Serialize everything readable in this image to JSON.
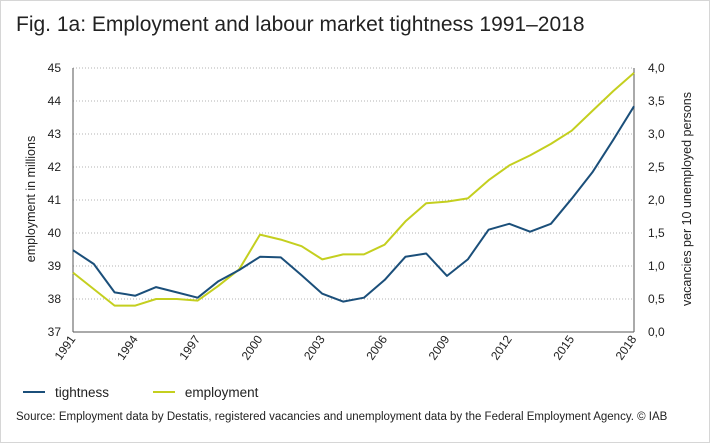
{
  "figure": {
    "title": "Fig. 1a: Employment and labour market tightness 1991–2018",
    "source": "Source: Employment data by Destatis, registered vacancies and unemployment data by the Federal Employment Agency. © IAB"
  },
  "chart_data": {
    "type": "line",
    "title": "Fig. 1a: Employment and labour market tightness 1991–2018",
    "xlabel": "",
    "ylabel": "employment in millions",
    "y2label": "vacancies per 10 unemployed persons",
    "x": [
      1991,
      1992,
      1993,
      1994,
      1995,
      1996,
      1997,
      1998,
      1999,
      2000,
      2001,
      2002,
      2003,
      2004,
      2005,
      2006,
      2007,
      2008,
      2009,
      2010,
      2011,
      2012,
      2013,
      2014,
      2015,
      2016,
      2017,
      2018
    ],
    "x_ticks": [
      "1991",
      "1994",
      "1997",
      "2000",
      "2003",
      "2006",
      "2009",
      "2012",
      "2015",
      "2018"
    ],
    "ylim": [
      37,
      45
    ],
    "y_ticks": [
      "37",
      "38",
      "39",
      "40",
      "41",
      "42",
      "43",
      "44",
      "45"
    ],
    "y2lim": [
      0,
      4
    ],
    "y2_ticks": [
      "0,0",
      "0,5",
      "1,0",
      "1,5",
      "2,0",
      "2,5",
      "3,0",
      "3,5",
      "4,0"
    ],
    "grid": "horizontal dotted",
    "legend_position": "bottom-left",
    "series": [
      {
        "name": "tightness",
        "axis": "right",
        "color": "#1b4f7a",
        "values": [
          1.24,
          1.03,
          0.6,
          0.55,
          0.68,
          0.6,
          0.52,
          0.77,
          0.94,
          1.14,
          1.13,
          0.86,
          0.58,
          0.46,
          0.52,
          0.79,
          1.14,
          1.19,
          0.85,
          1.1,
          1.55,
          1.64,
          1.52,
          1.64,
          2.02,
          2.42,
          2.91,
          3.42
        ]
      },
      {
        "name": "employment",
        "axis": "left",
        "color": "#c4cf1f",
        "values": [
          38.8,
          38.3,
          37.8,
          37.8,
          38.0,
          38.0,
          37.95,
          38.4,
          38.9,
          39.95,
          39.8,
          39.6,
          39.2,
          39.35,
          39.35,
          39.65,
          40.35,
          40.9,
          40.95,
          41.05,
          41.6,
          42.05,
          42.35,
          42.7,
          43.1,
          43.7,
          44.3,
          44.85
        ]
      }
    ]
  }
}
